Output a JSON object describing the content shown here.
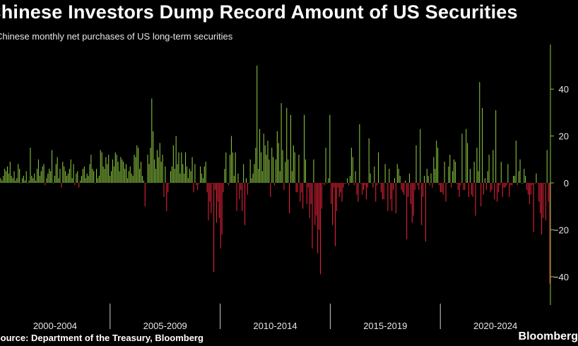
{
  "title": "Chinese Investors Dump Record Amount of US Securities",
  "subtitle": "Chinese monthly net purchases of US long-term securities",
  "source": "Source: Department of the Treasury, Bloomberg",
  "brand": "Bloomberg",
  "chart_data": {
    "type": "bar",
    "title": "Chinese Investors Dump Record Amount of US Securities",
    "subtitle": "Chinese monthly net purchases of US long-term securities",
    "xlabel": "",
    "ylabel": "",
    "ylim": [
      -52,
      59
    ],
    "yticks": [
      -40,
      -20,
      0,
      20,
      40
    ],
    "period_labels": [
      "2000-2004",
      "2005-2009",
      "2010-2014",
      "2015-2019",
      "2020-2024"
    ],
    "grid": false,
    "axis_position": "right",
    "colors": {
      "positive": "#8cc63f",
      "negative": "#e8233a",
      "axis": "#8cc63f"
    },
    "values": [
      2,
      1,
      3,
      6,
      5,
      7,
      4,
      9,
      3,
      2,
      5,
      1,
      2,
      8,
      6,
      0,
      2,
      3,
      1,
      5,
      0,
      1,
      15,
      3,
      2,
      4,
      1,
      6,
      10,
      3,
      5,
      7,
      8,
      -1,
      2,
      4,
      6,
      5,
      14,
      0,
      3,
      8,
      11,
      2,
      6,
      -2,
      9,
      7,
      5,
      3,
      4,
      6,
      10,
      2,
      8,
      -1,
      4,
      5,
      -2,
      1,
      3,
      6,
      7,
      2,
      4,
      3,
      8,
      12,
      6,
      5,
      0,
      6,
      2,
      3,
      14,
      13,
      7,
      6,
      11,
      8,
      12,
      3,
      5,
      10,
      7,
      13,
      12,
      9,
      5,
      11,
      10,
      9,
      6,
      8,
      2,
      5,
      7,
      4,
      3,
      12,
      11,
      16,
      15,
      6,
      9,
      3,
      1,
      -10,
      0,
      12,
      8,
      15,
      36,
      22,
      10,
      6,
      14,
      11,
      17,
      9,
      12,
      -6,
      7,
      -12,
      -4,
      0,
      5,
      7,
      16,
      6,
      20,
      8,
      13,
      4,
      13,
      8,
      4,
      13,
      7,
      2,
      6,
      5,
      11,
      -4,
      8,
      -1,
      -3,
      0,
      7,
      4,
      2,
      7,
      9,
      -4,
      -16,
      -8,
      -13,
      0,
      -38,
      -3,
      -17,
      -8,
      -15,
      -28,
      -22,
      -4,
      6,
      13,
      0,
      -1,
      12,
      20,
      13,
      3,
      13,
      -12,
      4,
      -7,
      -3,
      -12,
      8,
      -18,
      2,
      -5,
      0,
      10,
      2,
      4,
      8,
      15,
      50,
      6,
      23,
      13,
      5,
      21,
      16,
      12,
      18,
      10,
      -6,
      15,
      11,
      -1,
      10,
      22,
      17,
      5,
      34,
      14,
      -3,
      9,
      32,
      10,
      -13,
      29,
      5,
      16,
      13,
      -4,
      -4,
      12,
      -8,
      -4,
      -11,
      29,
      10,
      -9,
      -2,
      -15,
      -9,
      -28,
      10,
      -18,
      -14,
      -30,
      -20,
      -39,
      -11,
      0,
      -1,
      15,
      0,
      2,
      29,
      -9,
      -18,
      -2,
      -27,
      -12,
      -2,
      -6,
      -4,
      -8,
      -2,
      0,
      0,
      2,
      -1,
      3,
      15,
      11,
      -1,
      5,
      -5,
      -8,
      25,
      0,
      -5,
      -3,
      -1,
      -7,
      -2,
      19,
      4,
      0,
      -2,
      7,
      -8,
      -1,
      13,
      0,
      -4,
      -7,
      -7,
      8,
      0,
      -12,
      6,
      -7,
      -12,
      -3,
      2,
      -13,
      8,
      6,
      3,
      -3,
      -4,
      -5,
      1,
      -24,
      -6,
      4,
      -9,
      -17,
      -14,
      -3,
      16,
      -1,
      -3,
      23,
      -18,
      -6,
      3,
      -25,
      6,
      3,
      -1,
      4,
      -2,
      11,
      6,
      18,
      15,
      -1,
      -4,
      -4,
      -5,
      9,
      -8,
      0,
      7,
      12,
      -2,
      5,
      10,
      9,
      0,
      -3,
      -6,
      -1,
      21,
      -3,
      -3,
      23,
      17,
      -6,
      6,
      -5,
      -6,
      9,
      -14,
      15,
      5,
      43,
      -10,
      32,
      -5,
      2,
      -3,
      5,
      12,
      -4,
      -3,
      14,
      -7,
      31,
      -8,
      -4,
      -1,
      9,
      -6,
      -2,
      -2,
      -1,
      8,
      -6,
      -1,
      -1,
      3,
      3,
      18,
      -1,
      5,
      10,
      0,
      0,
      6,
      3,
      -3,
      -5,
      -9,
      -5,
      -1,
      -21,
      0,
      4,
      0,
      -8,
      -13,
      -22,
      -15,
      0,
      -16,
      14,
      -8,
      -43
    ]
  }
}
